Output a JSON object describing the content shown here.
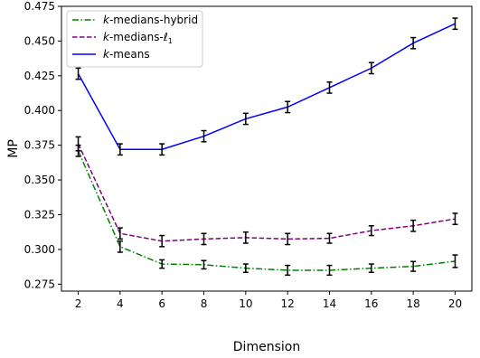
{
  "chart_data": {
    "type": "line",
    "xlabel": "Dimension",
    "ylabel": "MP",
    "x": [
      2,
      4,
      6,
      8,
      10,
      12,
      14,
      16,
      18,
      20
    ],
    "xlim": [
      1.2,
      20.8
    ],
    "ylim": [
      0.27,
      0.475
    ],
    "xticks": [
      "2",
      "4",
      "6",
      "8",
      "10",
      "12",
      "14",
      "16",
      "18",
      "20"
    ],
    "yticks": [
      "0.275",
      "0.300",
      "0.325",
      "0.350",
      "0.375",
      "0.400",
      "0.425",
      "0.450",
      "0.475"
    ],
    "grid": false,
    "legend_position": "top-left",
    "series": [
      {
        "name_prefix": "k",
        "name_suffix": "-medians-hybrid",
        "color": "#008000",
        "dash": "dashdot",
        "values": [
          0.371,
          0.302,
          0.2895,
          0.289,
          0.2865,
          0.285,
          0.285,
          0.2865,
          0.2878,
          0.2915
        ],
        "errors": [
          0.004,
          0.004,
          0.003,
          0.003,
          0.003,
          0.0035,
          0.0035,
          0.003,
          0.0035,
          0.0045
        ]
      },
      {
        "name_prefix": "k",
        "name_suffix": "-medians-ℓ",
        "name_subscript": "1",
        "color": "#800080",
        "dash": "dashed",
        "values": [
          0.376,
          0.3115,
          0.306,
          0.3075,
          0.3085,
          0.3075,
          0.308,
          0.3135,
          0.317,
          0.322
        ],
        "errors": [
          0.005,
          0.004,
          0.004,
          0.004,
          0.004,
          0.004,
          0.0035,
          0.0035,
          0.004,
          0.004
        ]
      },
      {
        "name_prefix": "k",
        "name_suffix": "-means",
        "color": "#0000ff",
        "dash": "solid",
        "values": [
          0.4265,
          0.372,
          0.372,
          0.3815,
          0.394,
          0.4025,
          0.4165,
          0.4305,
          0.4485,
          0.4625
        ],
        "errors": [
          0.004,
          0.004,
          0.004,
          0.004,
          0.004,
          0.004,
          0.004,
          0.004,
          0.004,
          0.004
        ]
      }
    ]
  }
}
